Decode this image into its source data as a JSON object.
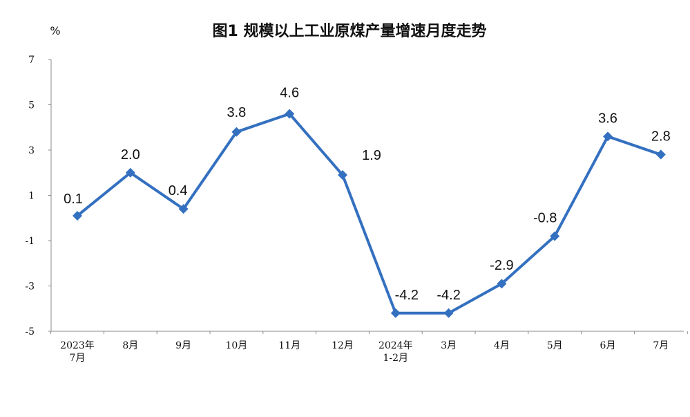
{
  "chart_data": {
    "type": "line",
    "title": "图1  规模以上工业原煤产量增速月度走势",
    "ylabel": "%",
    "ylim": [
      -5,
      7
    ],
    "yticks": [
      7,
      5,
      3,
      1,
      -1,
      -3,
      -5
    ],
    "categories": [
      [
        "2023年",
        "7月"
      ],
      [
        "8月"
      ],
      [
        "9月"
      ],
      [
        "10月"
      ],
      [
        "11月"
      ],
      [
        "12月"
      ],
      [
        "2024年",
        "1-2月"
      ],
      [
        "3月"
      ],
      [
        "4月"
      ],
      [
        "5月"
      ],
      [
        "6月"
      ],
      [
        "7月"
      ]
    ],
    "series": [
      {
        "values": [
          0.1,
          2.0,
          0.4,
          3.8,
          4.6,
          1.9,
          -4.2,
          -4.2,
          -2.9,
          -0.8,
          3.6,
          2.8
        ],
        "labels": [
          "0.1",
          "2.0",
          "0.4",
          "3.8",
          "4.6",
          "1.9",
          "-4.2",
          "-4.2",
          "-2.9",
          "-0.8",
          "3.6",
          "2.8"
        ],
        "color": "#3470c0"
      }
    ],
    "grid": false,
    "legend": "none"
  }
}
